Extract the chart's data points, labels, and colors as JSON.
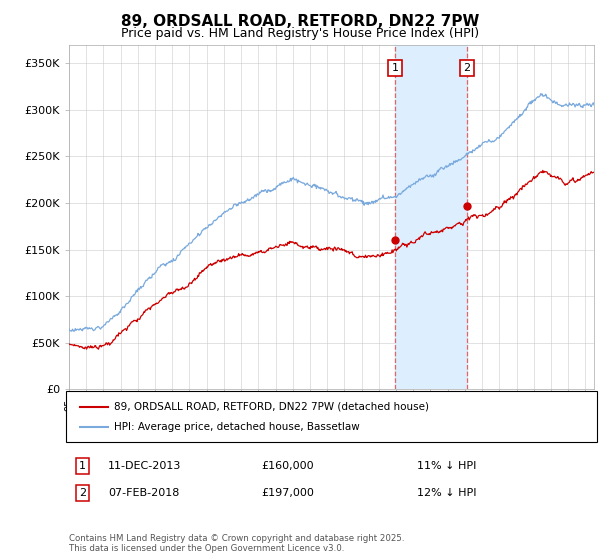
{
  "title": "89, ORDSALL ROAD, RETFORD, DN22 7PW",
  "subtitle": "Price paid vs. HM Land Registry's House Price Index (HPI)",
  "ylabel_ticks": [
    "£0",
    "£50K",
    "£100K",
    "£150K",
    "£200K",
    "£250K",
    "£300K",
    "£350K"
  ],
  "ytick_values": [
    0,
    50000,
    100000,
    150000,
    200000,
    250000,
    300000,
    350000
  ],
  "ylim": [
    0,
    370000
  ],
  "xlim_start": 1995.0,
  "xlim_end": 2025.5,
  "hpi_color": "#7aaadd",
  "price_color": "#cc0000",
  "marker1_x": 2013.94,
  "marker2_x": 2018.1,
  "sale1_price": 160000,
  "sale2_price": 197000,
  "shade_color": "#ddeeff",
  "dashed_line_color": "#dd6666",
  "legend_label_red": "89, ORDSALL ROAD, RETFORD, DN22 7PW (detached house)",
  "legend_label_blue": "HPI: Average price, detached house, Bassetlaw",
  "transaction1_label": "1",
  "transaction1_date": "11-DEC-2013",
  "transaction1_price": "£160,000",
  "transaction1_note": "11% ↓ HPI",
  "transaction2_label": "2",
  "transaction2_date": "07-FEB-2018",
  "transaction2_price": "£197,000",
  "transaction2_note": "12% ↓ HPI",
  "footer": "Contains HM Land Registry data © Crown copyright and database right 2025.\nThis data is licensed under the Open Government Licence v3.0."
}
